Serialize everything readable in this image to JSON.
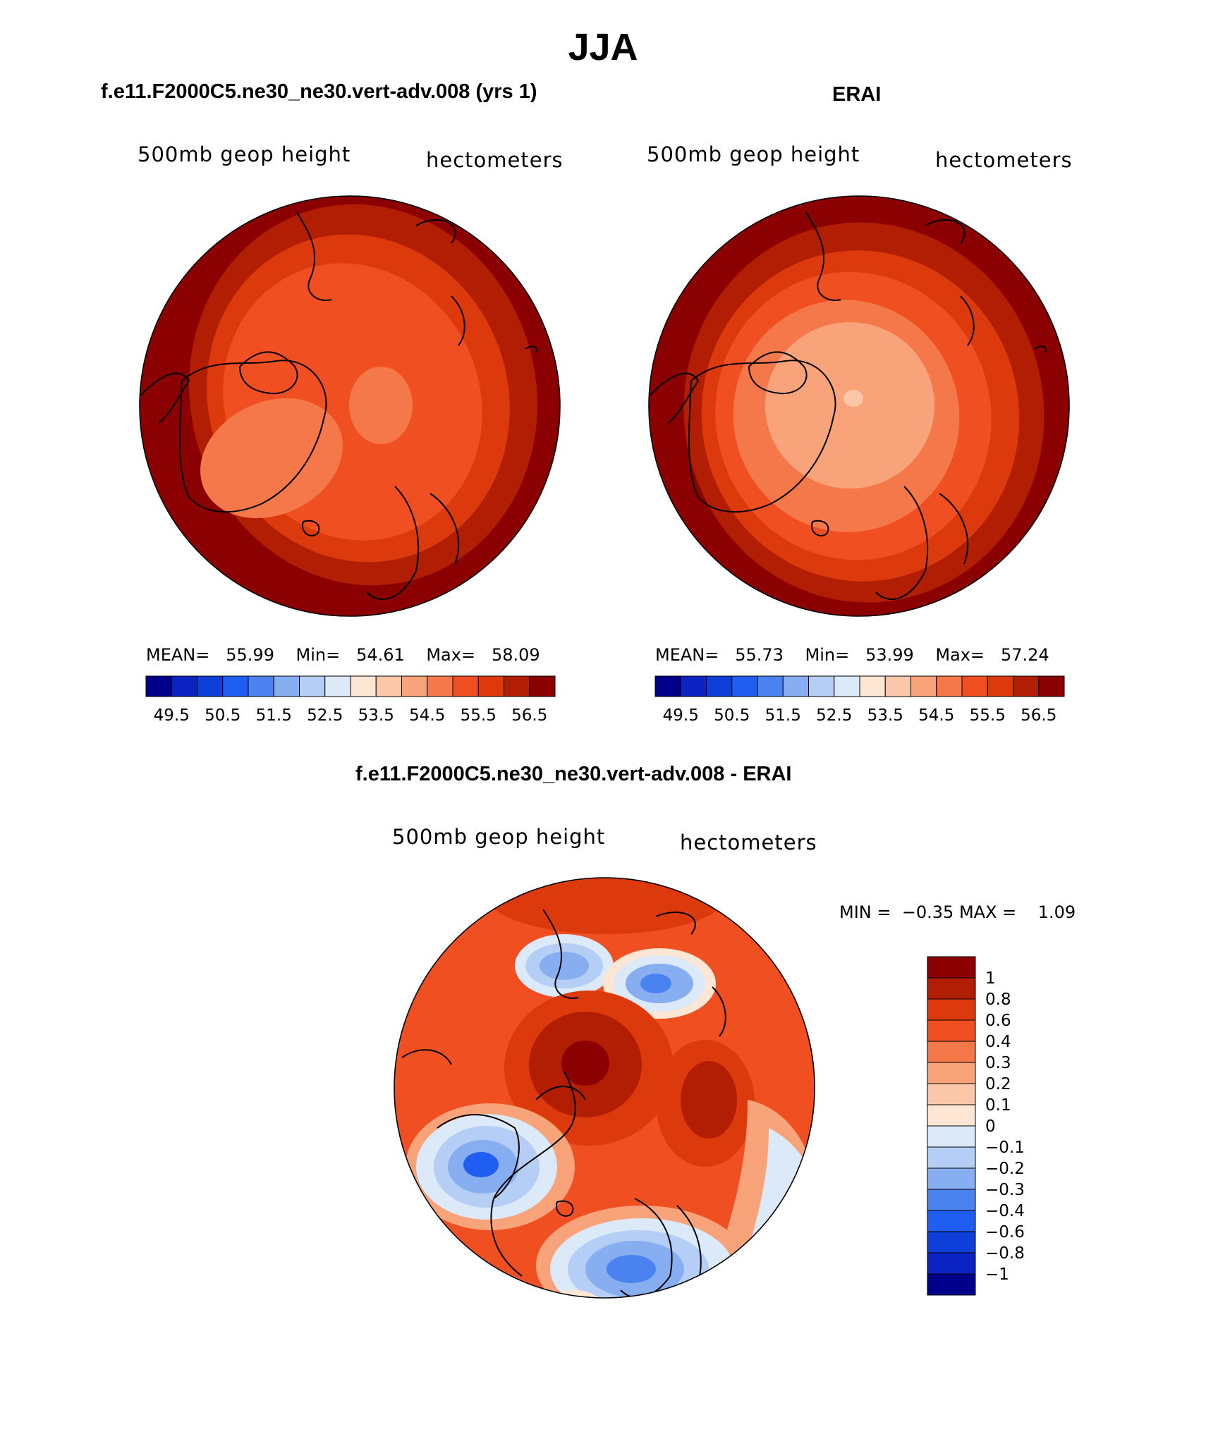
{
  "title": "JJA",
  "panels": [
    {
      "title": "f.e11.F2000C5.ne30_ne30.vert-adv.008 (yrs 1)",
      "variable": "500mb geop height",
      "units": "hectometers",
      "stats": {
        "mean_label": "MEAN=",
        "mean": "55.99",
        "min_label": "Min=",
        "min": "54.61",
        "max_label": "Max=",
        "max": "58.09"
      }
    },
    {
      "title": "ERAI",
      "variable": "500mb geop height",
      "units": "hectometers",
      "stats": {
        "mean_label": "MEAN=",
        "mean": "55.73",
        "min_label": "Min=",
        "min": "53.99",
        "max_label": "Max=",
        "max": "57.24"
      }
    }
  ],
  "abs_colorbar": {
    "colors": [
      "#00008b",
      "#0b23c2",
      "#0f3fd9",
      "#1f5ef0",
      "#4a83ef",
      "#86aef0",
      "#b5cef5",
      "#dce9f8",
      "#fde6d4",
      "#fbc7a9",
      "#f8a37a",
      "#f5784a",
      "#f04f22",
      "#dc3a0c",
      "#b11e04",
      "#8b0000"
    ],
    "tick_labels": [
      "49.5",
      "50.5",
      "51.5",
      "52.5",
      "53.5",
      "54.5",
      "55.5",
      "56.5"
    ]
  },
  "diff_panel": {
    "title": "f.e11.F2000C5.ne30_ne30.vert-adv.008 - ERAI",
    "variable": "500mb geop height",
    "units": "hectometers",
    "minmax": {
      "min_label": "MIN =",
      "min": "−0.35",
      "max_label": "MAX =",
      "max": "1.09"
    }
  },
  "diff_colorbar": {
    "colors": [
      "#8b0000",
      "#b11e04",
      "#dc3a0c",
      "#f04f22",
      "#f5784a",
      "#f8a37a",
      "#fbc7a9",
      "#fde6d4",
      "#dce9f8",
      "#b5cef5",
      "#86aef0",
      "#4a83ef",
      "#1f5ef0",
      "#0f3fd9",
      "#0b23c2",
      "#00008b"
    ],
    "tick_labels": [
      "1",
      "0.8",
      "0.6",
      "0.4",
      "0.3",
      "0.2",
      "0.1",
      "0",
      "−0.1",
      "−0.2",
      "−0.3",
      "−0.4",
      "−0.6",
      "−0.8",
      "−1"
    ]
  }
}
